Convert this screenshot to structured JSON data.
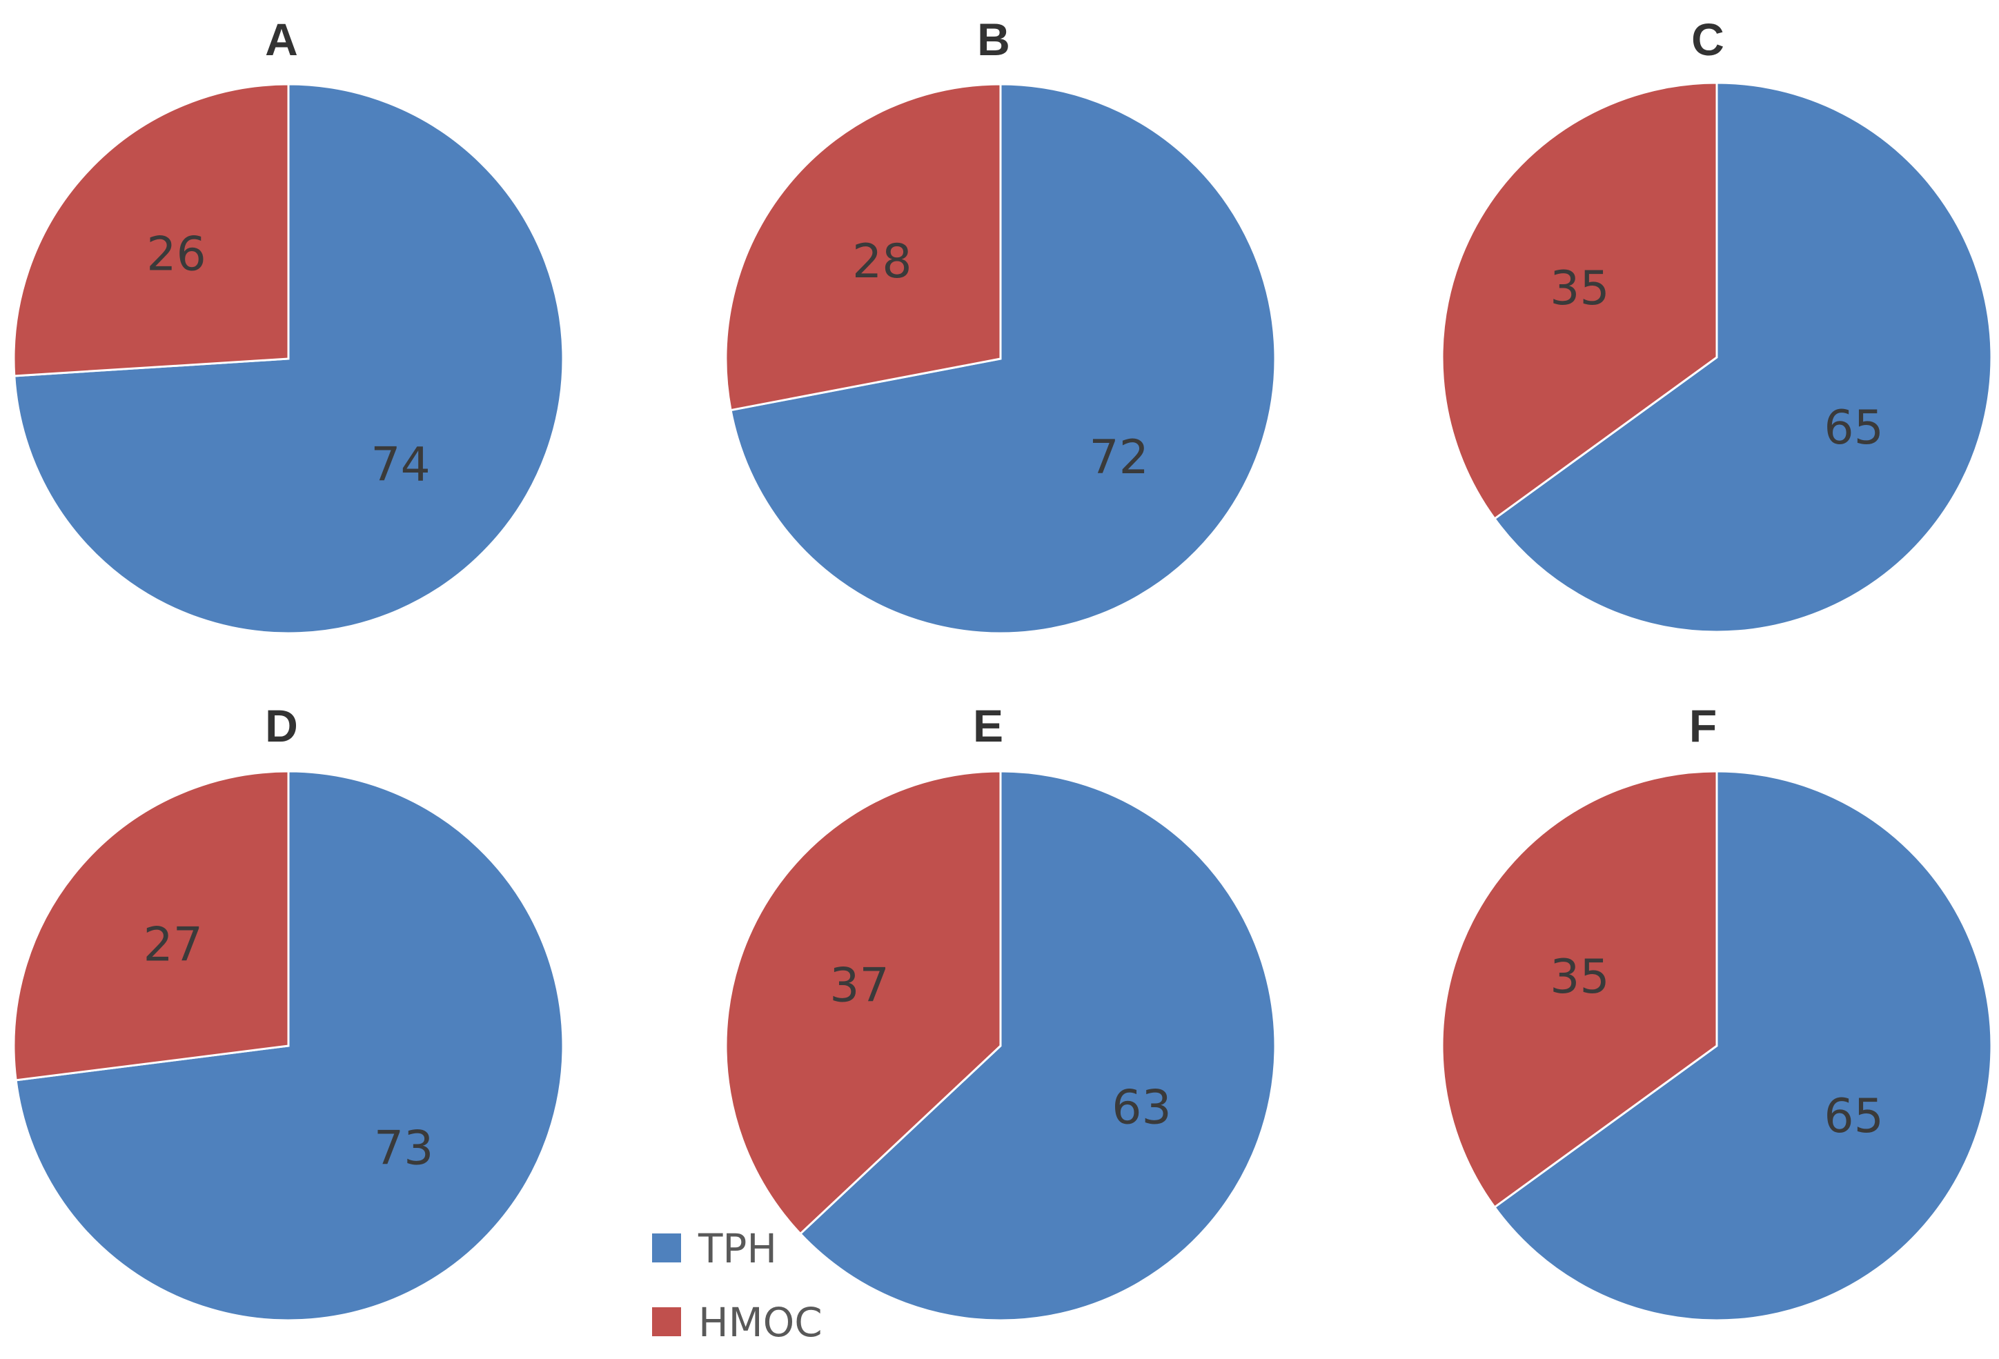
{
  "colors": {
    "TPH": "#4f81bd",
    "HMOC": "#c0504d",
    "slice_border": "#ffffff"
  },
  "chart_data": [
    {
      "type": "pie",
      "title": "A",
      "labels": [
        "TPH",
        "HMOC"
      ],
      "values": [
        74,
        26
      ]
    },
    {
      "type": "pie",
      "title": "B",
      "labels": [
        "TPH",
        "HMOC"
      ],
      "values": [
        72,
        28
      ]
    },
    {
      "type": "pie",
      "title": "C",
      "labels": [
        "TPH",
        "HMOC"
      ],
      "values": [
        65,
        35
      ]
    },
    {
      "type": "pie",
      "title": "D",
      "labels": [
        "TPH",
        "HMOC"
      ],
      "values": [
        73,
        27
      ]
    },
    {
      "type": "pie",
      "title": "E",
      "labels": [
        "TPH",
        "HMOC"
      ],
      "values": [
        63,
        37
      ]
    },
    {
      "type": "pie",
      "title": "F",
      "labels": [
        "TPH",
        "HMOC"
      ],
      "values": [
        65,
        35
      ]
    }
  ],
  "legend": {
    "items": [
      {
        "label": "TPH",
        "color": "#4f81bd"
      },
      {
        "label": "HMOC",
        "color": "#c0504d"
      }
    ]
  }
}
